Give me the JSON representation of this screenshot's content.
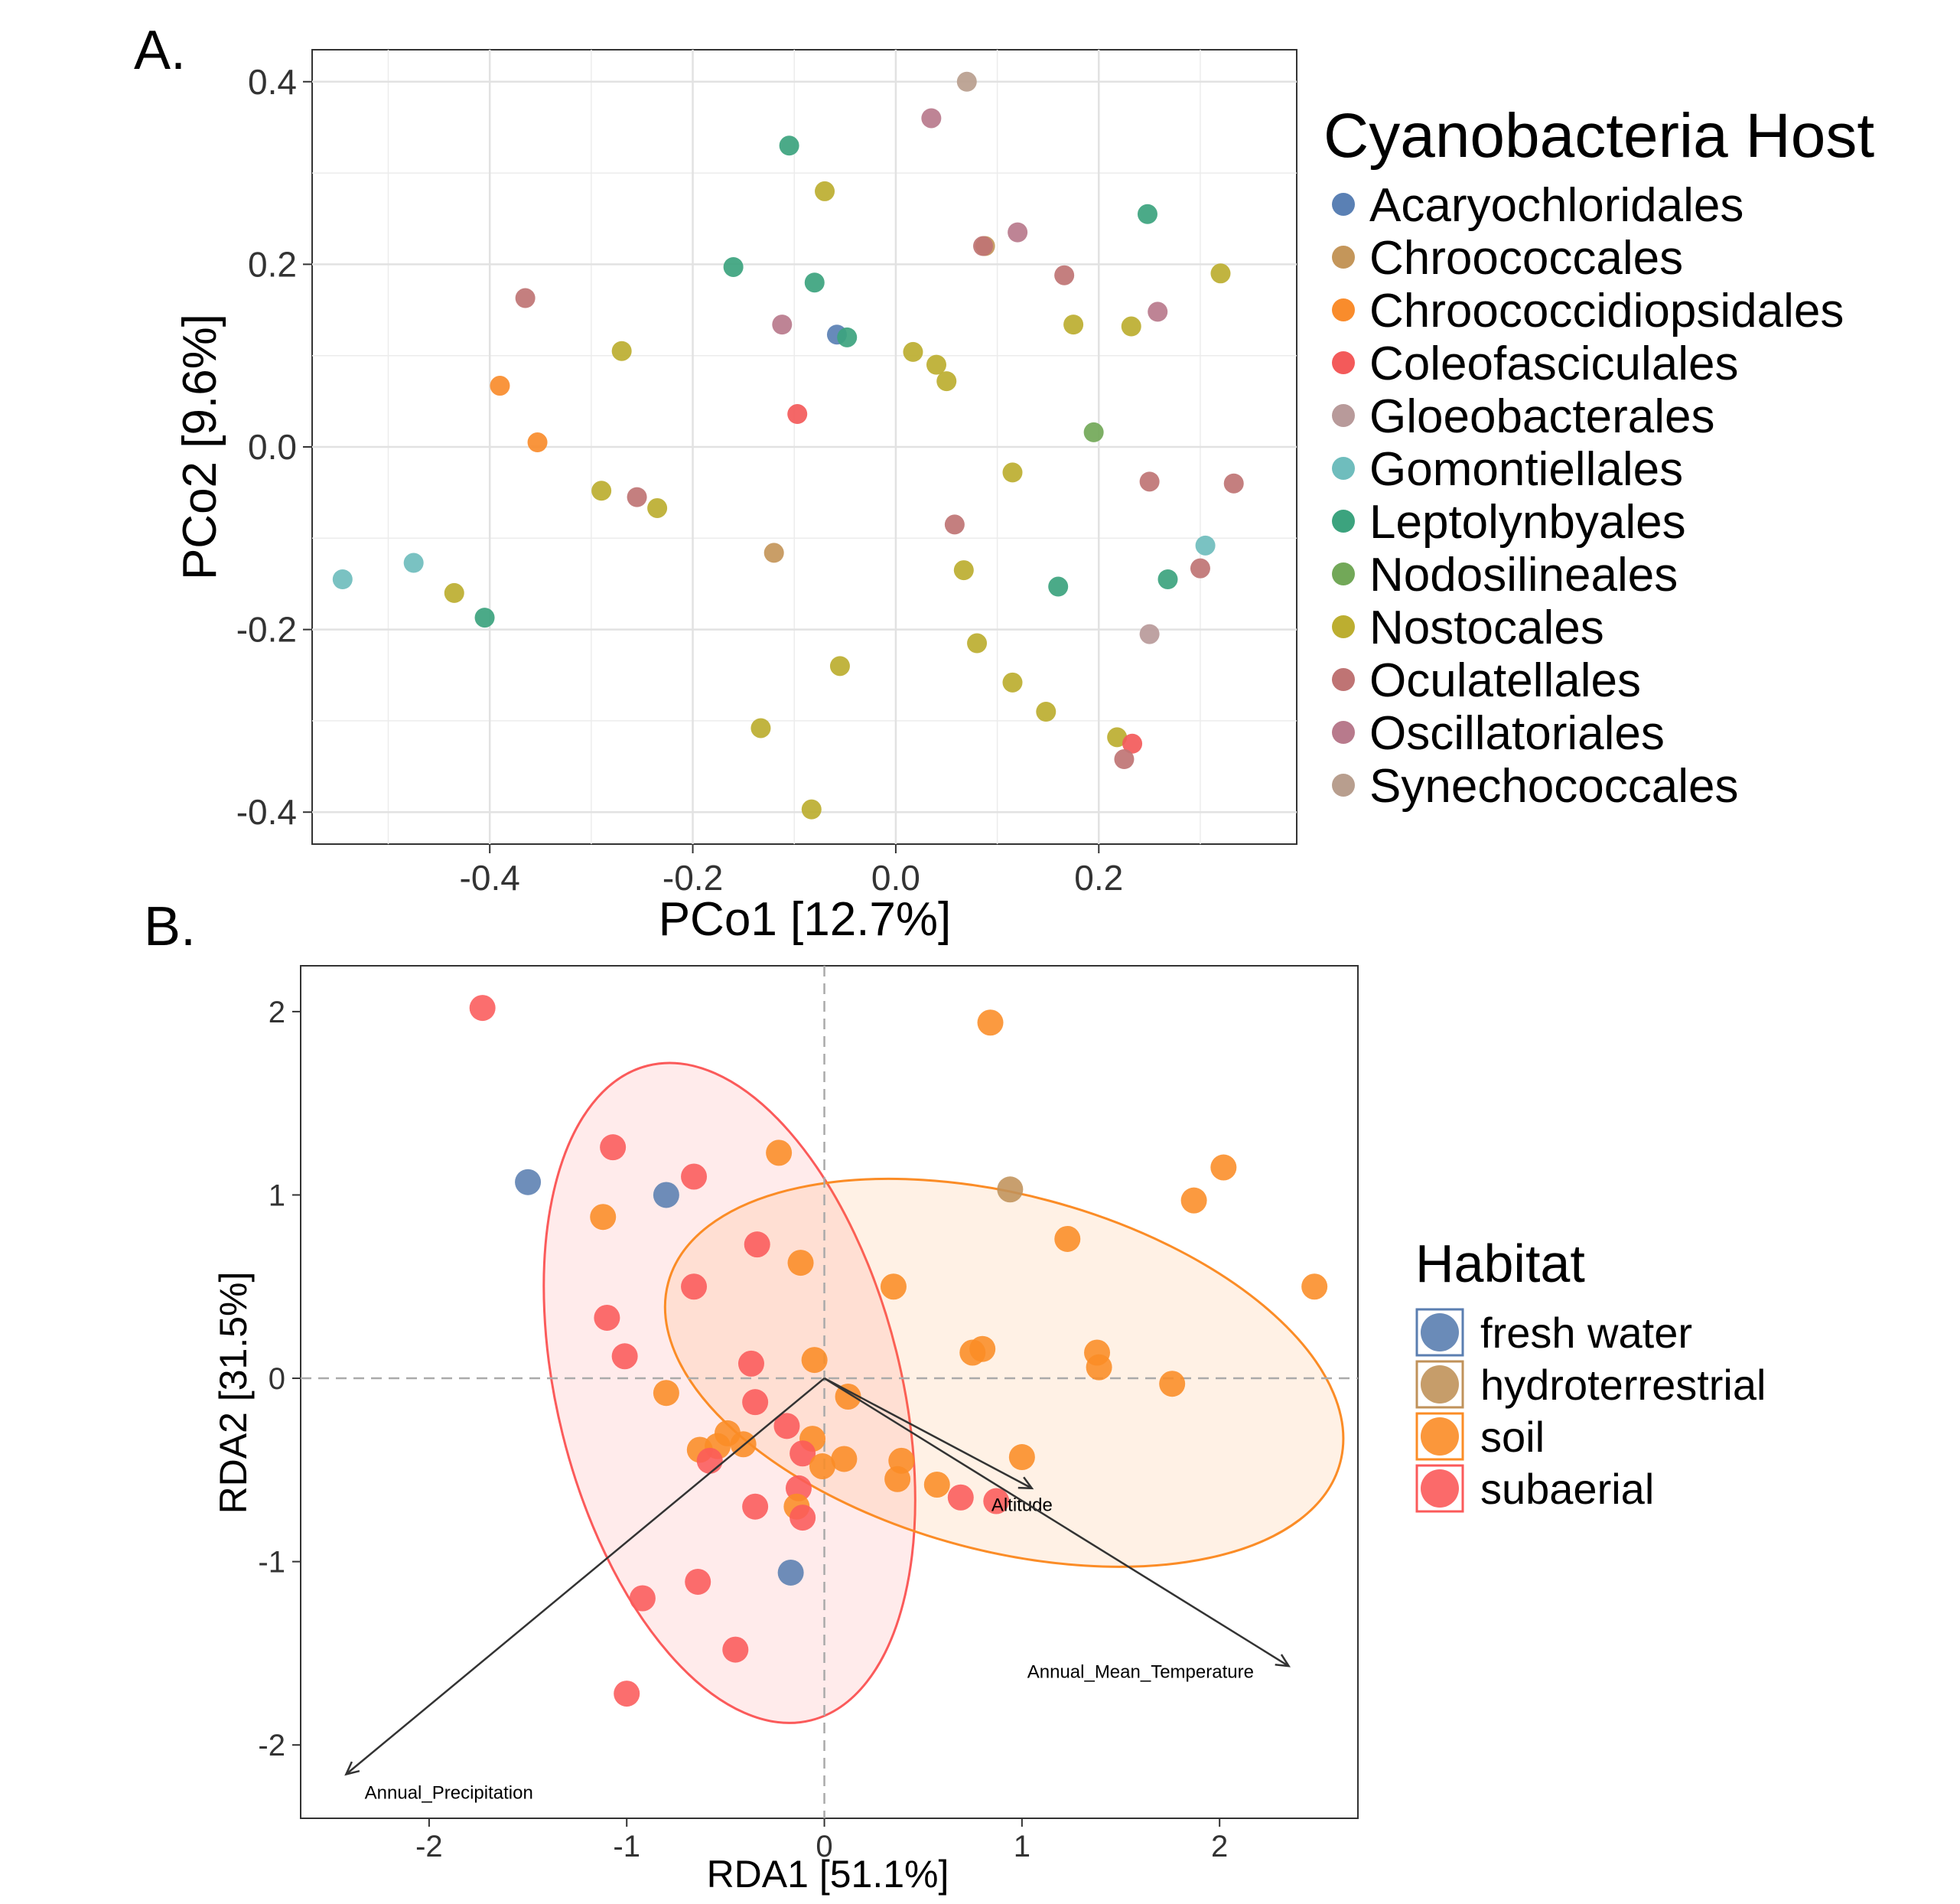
{
  "panels": {
    "a_label": "A.",
    "b_label": "B."
  },
  "colors": {
    "Acaryochloridales": "#5a80b4",
    "Chroococcales": "#c4965a",
    "Chroococcidiopsidales": "#f98c2c",
    "Coleofasciculales": "#f35a5a",
    "Gloeobacterales": "#b89a9a",
    "Gomontiellales": "#6fbdbd",
    "Leptolynbyales": "#3ca37e",
    "Nodosilineales": "#72a858",
    "Nostocales": "#bcae30",
    "Oculatellales": "#bf7474",
    "Oscillatoriales": "#b87a8c",
    "Synechococcales": "#b89e8e",
    "fresh water": "#5a7eb0",
    "hydroterrestrial": "#c0925a",
    "soil": "#fb8c26",
    "subaerial": "#fb5a5a"
  },
  "chart_data": [
    {
      "type": "scatter",
      "panel": "A.",
      "xlabel": "PCo1 [12.7%]",
      "ylabel": "PCo2 [9.6%]",
      "xlim": [
        -0.575,
        0.395
      ],
      "ylim": [
        -0.435,
        0.435
      ],
      "xticks": [
        -0.4,
        -0.2,
        0.0,
        0.2
      ],
      "xtick_labels": [
        "-0.4",
        "-0.2",
        "0.0",
        "0.2"
      ],
      "yticks": [
        -0.4,
        -0.2,
        0.0,
        0.2,
        0.4
      ],
      "ytick_labels": [
        "-0.4",
        "-0.2",
        "0.0",
        "0.2",
        "0.4"
      ],
      "grid": true,
      "legend": {
        "title": "Cyanobacteria Host",
        "placement": "right",
        "entries": [
          "Acaryochloridales",
          "Chroococcales",
          "Chroococcidiopsidales",
          "Coleofasciculales",
          "Gloeobacterales",
          "Gomontiellales",
          "Leptolynbyales",
          "Nodosilineales",
          "Nostocales",
          "Oculatellales",
          "Oscillatoriales",
          "Synechococcales"
        ]
      },
      "points": [
        {
          "x": 0.07,
          "y": 0.4,
          "g": "Synechococcales"
        },
        {
          "x": 0.035,
          "y": 0.36,
          "g": "Oscillatoriales"
        },
        {
          "x": -0.105,
          "y": 0.33,
          "g": "Leptolynbyales"
        },
        {
          "x": -0.07,
          "y": 0.28,
          "g": "Nostocales"
        },
        {
          "x": 0.248,
          "y": 0.255,
          "g": "Leptolynbyales"
        },
        {
          "x": 0.12,
          "y": 0.235,
          "g": "Oscillatoriales"
        },
        {
          "x": 0.088,
          "y": 0.22,
          "g": "Chroococcales"
        },
        {
          "x": 0.086,
          "y": 0.22,
          "g": "Oculatellales"
        },
        {
          "x": 0.32,
          "y": 0.19,
          "g": "Nostocales"
        },
        {
          "x": -0.16,
          "y": 0.197,
          "g": "Leptolynbyales"
        },
        {
          "x": 0.166,
          "y": 0.188,
          "g": "Oculatellales"
        },
        {
          "x": -0.08,
          "y": 0.18,
          "g": "Leptolynbyales"
        },
        {
          "x": -0.365,
          "y": 0.163,
          "g": "Oculatellales"
        },
        {
          "x": 0.258,
          "y": 0.148,
          "g": "Oscillatoriales"
        },
        {
          "x": 0.175,
          "y": 0.134,
          "g": "Nostocales"
        },
        {
          "x": 0.232,
          "y": 0.132,
          "g": "Nostocales"
        },
        {
          "x": -0.112,
          "y": 0.134,
          "g": "Oscillatoriales"
        },
        {
          "x": -0.058,
          "y": 0.123,
          "g": "Acaryochloridales"
        },
        {
          "x": -0.048,
          "y": 0.12,
          "g": "Leptolynbyales"
        },
        {
          "x": -0.27,
          "y": 0.105,
          "g": "Nostocales"
        },
        {
          "x": 0.017,
          "y": 0.104,
          "g": "Nostocales"
        },
        {
          "x": 0.04,
          "y": 0.09,
          "g": "Nostocales"
        },
        {
          "x": 0.05,
          "y": 0.072,
          "g": "Nostocales"
        },
        {
          "x": -0.39,
          "y": 0.067,
          "g": "Chroococcidiopsidales"
        },
        {
          "x": -0.097,
          "y": 0.036,
          "g": "Coleofasciculales"
        },
        {
          "x": 0.195,
          "y": 0.016,
          "g": "Nodosilineales"
        },
        {
          "x": -0.353,
          "y": 0.005,
          "g": "Chroococcidiopsidales"
        },
        {
          "x": 0.115,
          "y": -0.028,
          "g": "Nostocales"
        },
        {
          "x": 0.25,
          "y": -0.038,
          "g": "Oculatellales"
        },
        {
          "x": 0.333,
          "y": -0.04,
          "g": "Oculatellales"
        },
        {
          "x": -0.29,
          "y": -0.048,
          "g": "Nostocales"
        },
        {
          "x": -0.255,
          "y": -0.055,
          "g": "Oculatellales"
        },
        {
          "x": -0.235,
          "y": -0.067,
          "g": "Nostocales"
        },
        {
          "x": 0.058,
          "y": -0.085,
          "g": "Oculatellales"
        },
        {
          "x": 0.305,
          "y": -0.108,
          "g": "Gomontiellales"
        },
        {
          "x": -0.12,
          "y": -0.116,
          "g": "Chroococcales"
        },
        {
          "x": -0.475,
          "y": -0.127,
          "g": "Gomontiellales"
        },
        {
          "x": 0.3,
          "y": -0.133,
          "g": "Oculatellales"
        },
        {
          "x": 0.067,
          "y": -0.135,
          "g": "Nostocales"
        },
        {
          "x": -0.545,
          "y": -0.145,
          "g": "Gomontiellales"
        },
        {
          "x": 0.268,
          "y": -0.145,
          "g": "Leptolynbyales"
        },
        {
          "x": 0.16,
          "y": -0.153,
          "g": "Leptolynbyales"
        },
        {
          "x": -0.435,
          "y": -0.16,
          "g": "Nostocales"
        },
        {
          "x": -0.405,
          "y": -0.187,
          "g": "Leptolynbyales"
        },
        {
          "x": 0.25,
          "y": -0.205,
          "g": "Gloeobacterales"
        },
        {
          "x": 0.08,
          "y": -0.215,
          "g": "Nostocales"
        },
        {
          "x": -0.055,
          "y": -0.24,
          "g": "Nostocales"
        },
        {
          "x": 0.115,
          "y": -0.258,
          "g": "Nostocales"
        },
        {
          "x": 0.148,
          "y": -0.29,
          "g": "Nostocales"
        },
        {
          "x": -0.133,
          "y": -0.308,
          "g": "Nostocales"
        },
        {
          "x": 0.218,
          "y": -0.318,
          "g": "Nostocales"
        },
        {
          "x": 0.233,
          "y": -0.325,
          "g": "Coleofasciculales"
        },
        {
          "x": 0.225,
          "y": -0.342,
          "g": "Oculatellales"
        },
        {
          "x": -0.083,
          "y": -0.397,
          "g": "Nostocales"
        }
      ]
    },
    {
      "type": "scatter",
      "panel": "B.",
      "xlabel": "RDA1 [51.1%]",
      "ylabel": "RDA2 [31.5%]",
      "xlim": [
        -2.65,
        2.7
      ],
      "ylim": [
        -2.4,
        2.25
      ],
      "xticks": [
        -2,
        -1,
        0,
        1,
        2
      ],
      "xtick_labels": [
        "-2",
        "-1",
        "0",
        "1",
        "2"
      ],
      "yticks": [
        -2,
        -1,
        0,
        1,
        2
      ],
      "ytick_labels": [
        "-2",
        "-1",
        "0",
        "1",
        "2"
      ],
      "grid": false,
      "reference_lines": {
        "x": 0,
        "y": 0
      },
      "legend": {
        "title": "Habitat",
        "placement": "right",
        "entries": [
          "fresh water",
          "hydroterrestrial",
          "soil",
          "subaerial"
        ]
      },
      "ellipses": [
        {
          "group": "subaerial",
          "cx": -0.48,
          "cy": -0.08,
          "rx": 0.87,
          "ry": 1.84,
          "angle": -14
        },
        {
          "group": "soil",
          "cx": 0.91,
          "cy": 0.03,
          "rx": 1.76,
          "ry": 0.97,
          "angle": 15
        }
      ],
      "vectors": [
        {
          "label": "Altitude",
          "x": 1.05,
          "y": -0.6,
          "label_x": 1.0,
          "label_y": -0.69
        },
        {
          "label": "Annual_Mean_Temperature",
          "x": 2.35,
          "y": -1.57,
          "label_x": 1.6,
          "label_y": -1.6
        },
        {
          "label": "Annual_Precipitation",
          "x": -2.42,
          "y": -2.16,
          "label_x": -1.9,
          "label_y": -2.26
        }
      ],
      "points": [
        {
          "x": -1.73,
          "y": 2.02,
          "g": "subaerial"
        },
        {
          "x": 0.84,
          "y": 1.94,
          "g": "soil"
        },
        {
          "x": -1.07,
          "y": 1.26,
          "g": "subaerial"
        },
        {
          "x": -0.23,
          "y": 1.23,
          "g": "soil"
        },
        {
          "x": 2.02,
          "y": 1.15,
          "g": "soil"
        },
        {
          "x": -0.66,
          "y": 1.1,
          "g": "subaerial"
        },
        {
          "x": -1.5,
          "y": 1.07,
          "g": "fresh water"
        },
        {
          "x": 0.94,
          "y": 1.03,
          "g": "hydroterrestrial"
        },
        {
          "x": -0.8,
          "y": 1.0,
          "g": "fresh water"
        },
        {
          "x": 1.87,
          "y": 0.97,
          "g": "soil"
        },
        {
          "x": -1.12,
          "y": 0.88,
          "g": "soil"
        },
        {
          "x": 1.23,
          "y": 0.76,
          "g": "soil"
        },
        {
          "x": -0.34,
          "y": 0.73,
          "g": "subaerial"
        },
        {
          "x": -0.12,
          "y": 0.63,
          "g": "soil"
        },
        {
          "x": 2.48,
          "y": 0.5,
          "g": "soil"
        },
        {
          "x": 0.35,
          "y": 0.5,
          "g": "soil"
        },
        {
          "x": -0.66,
          "y": 0.5,
          "g": "subaerial"
        },
        {
          "x": -1.1,
          "y": 0.33,
          "g": "subaerial"
        },
        {
          "x": 0.8,
          "y": 0.16,
          "g": "soil"
        },
        {
          "x": 0.75,
          "y": 0.14,
          "g": "soil"
        },
        {
          "x": 1.38,
          "y": 0.14,
          "g": "soil"
        },
        {
          "x": -1.01,
          "y": 0.12,
          "g": "subaerial"
        },
        {
          "x": -0.05,
          "y": 0.1,
          "g": "soil"
        },
        {
          "x": -0.37,
          "y": 0.08,
          "g": "subaerial"
        },
        {
          "x": 1.39,
          "y": 0.06,
          "g": "soil"
        },
        {
          "x": 1.76,
          "y": -0.03,
          "g": "soil"
        },
        {
          "x": -0.8,
          "y": -0.08,
          "g": "soil"
        },
        {
          "x": 0.12,
          "y": -0.1,
          "g": "soil"
        },
        {
          "x": -0.35,
          "y": -0.13,
          "g": "subaerial"
        },
        {
          "x": -0.19,
          "y": -0.26,
          "g": "subaerial"
        },
        {
          "x": -0.49,
          "y": -0.3,
          "g": "soil"
        },
        {
          "x": -0.06,
          "y": -0.33,
          "g": "soil"
        },
        {
          "x": -0.41,
          "y": -0.36,
          "g": "soil"
        },
        {
          "x": -0.54,
          "y": -0.37,
          "g": "soil"
        },
        {
          "x": -0.63,
          "y": -0.39,
          "g": "soil"
        },
        {
          "x": -0.11,
          "y": -0.41,
          "g": "subaerial"
        },
        {
          "x": 1.0,
          "y": -0.43,
          "g": "soil"
        },
        {
          "x": 0.1,
          "y": -0.44,
          "g": "soil"
        },
        {
          "x": 0.39,
          "y": -0.45,
          "g": "soil"
        },
        {
          "x": -0.58,
          "y": -0.45,
          "g": "subaerial"
        },
        {
          "x": -0.01,
          "y": -0.48,
          "g": "soil"
        },
        {
          "x": 0.37,
          "y": -0.55,
          "g": "soil"
        },
        {
          "x": 0.57,
          "y": -0.58,
          "g": "soil"
        },
        {
          "x": -0.13,
          "y": -0.6,
          "g": "subaerial"
        },
        {
          "x": 0.69,
          "y": -0.65,
          "g": "subaerial"
        },
        {
          "x": -0.14,
          "y": -0.7,
          "g": "soil"
        },
        {
          "x": -0.35,
          "y": -0.7,
          "g": "subaerial"
        },
        {
          "x": -0.11,
          "y": -0.76,
          "g": "subaerial"
        },
        {
          "x": 0.87,
          "y": -0.67,
          "g": "subaerial"
        },
        {
          "x": -0.17,
          "y": -1.06,
          "g": "fresh water"
        },
        {
          "x": -0.64,
          "y": -1.11,
          "g": "subaerial"
        },
        {
          "x": -0.92,
          "y": -1.2,
          "g": "subaerial"
        },
        {
          "x": -0.45,
          "y": -1.48,
          "g": "subaerial"
        },
        {
          "x": -1.0,
          "y": -1.72,
          "g": "subaerial"
        }
      ]
    }
  ]
}
